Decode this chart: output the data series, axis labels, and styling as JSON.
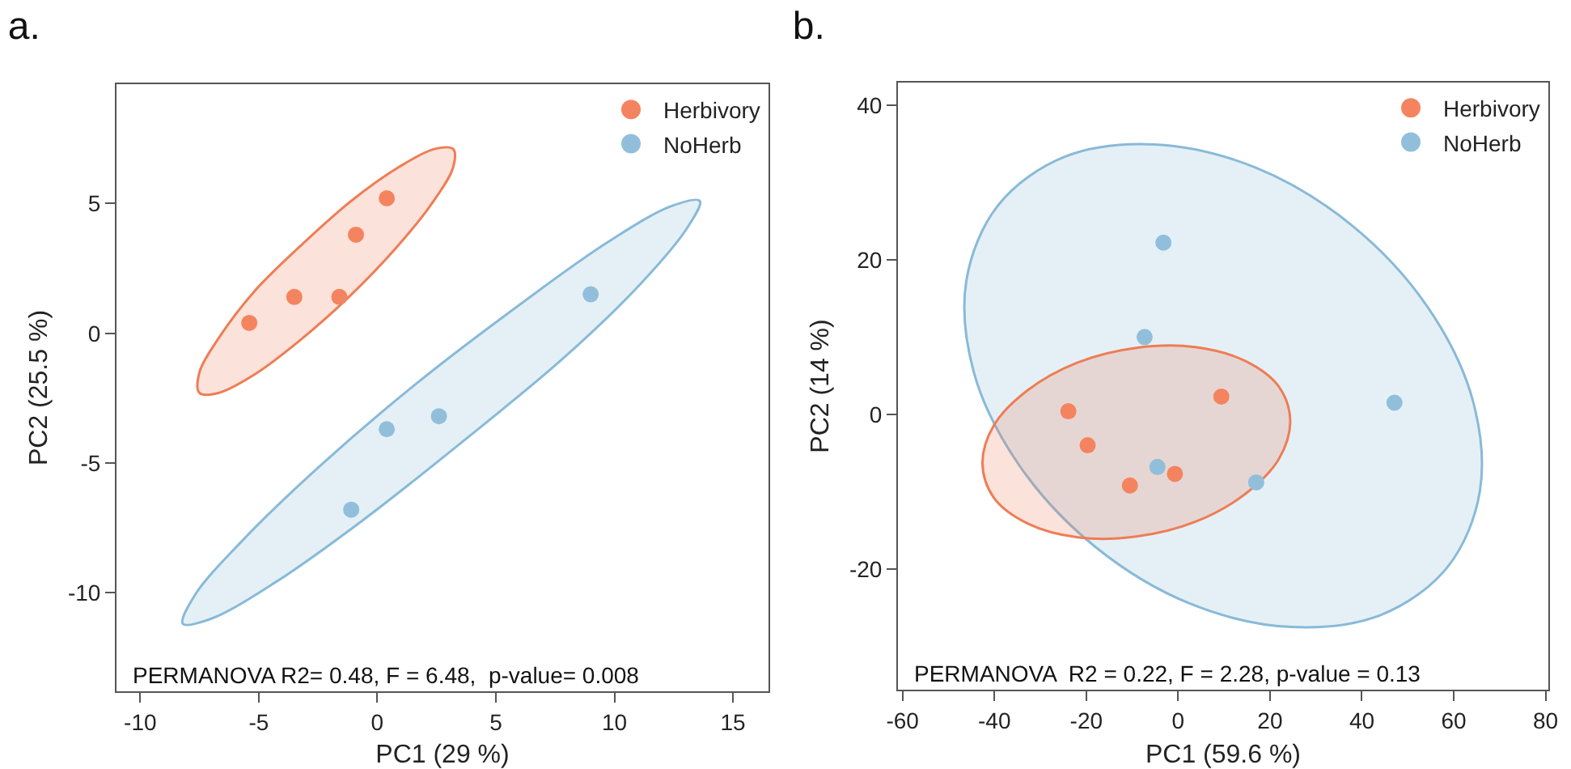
{
  "chart_data": [
    {
      "type": "scatter",
      "title": "a.",
      "xlabel": "PC1 (29 %)",
      "ylabel": "PC2 (25.5 %)",
      "xlim": [
        -11,
        16.5
      ],
      "ylim": [
        -13.8,
        9.6
      ],
      "xticks": [
        -10,
        -5,
        0,
        5,
        10,
        15
      ],
      "yticks": [
        -10,
        -5,
        0,
        5
      ],
      "grid": false,
      "legend": "top right",
      "annotations": [
        "PERMANOVA R2= 0.48, F = 6.48,  p-value= 0.008"
      ],
      "series": [
        {
          "type": "area",
          "color": "#ee7d55",
          "x": [
            3.2,
            3.2,
            2.3,
            0.8,
            -1.2,
            -3.3,
            -5.2,
            -6.7,
            -7.5,
            -7.5,
            -6.7,
            -5.2,
            -3.2,
            -1.1,
            0.9,
            2.4,
            3.2
          ],
          "values": [
            7.1,
            6.4,
            5.0,
            3.3,
            1.4,
            -0.3,
            -1.6,
            -2.3,
            -2.3,
            -1.5,
            -0.2,
            1.6,
            3.4,
            5.1,
            6.4,
            7.1,
            7.1
          ]
        },
        {
          "type": "area",
          "color": "#88bad8",
          "x": [
            13.6,
            13.1,
            11.1,
            7.8,
            3.7,
            -0.6,
            -4.3,
            -7.0,
            -8.2,
            -7.7,
            -5.7,
            -2.4,
            1.7,
            6.0,
            9.7,
            12.4,
            13.6
          ],
          "values": [
            5.1,
            4.1,
            1.9,
            -1.0,
            -4.1,
            -7.2,
            -9.6,
            -11.0,
            -11.2,
            -10.1,
            -8.0,
            -5.1,
            -1.9,
            1.1,
            3.5,
            4.9,
            5.1
          ]
        },
        {
          "name": "Herbivory",
          "color": "#f4845f",
          "marker": "circle",
          "x": [
            -5.4,
            -3.5,
            -1.6,
            -0.9,
            0.4
          ],
          "values": [
            0.4,
            1.4,
            1.4,
            3.8,
            5.2
          ]
        },
        {
          "name": "NoHerb",
          "color": "#91bfdb",
          "marker": "circle",
          "x": [
            0.4,
            2.6,
            -1.1,
            9.0
          ],
          "values": [
            -3.7,
            -3.2,
            -6.8,
            1.5
          ]
        }
      ]
    },
    {
      "type": "scatter",
      "title": "b.",
      "xlabel": "PC1 (59.6 %)",
      "ylabel": "PC2 (14 %)",
      "xlim": [
        -61,
        80.6
      ],
      "ylim": [
        -35.6,
        42.9
      ],
      "xticks": [
        -60,
        -40,
        -20,
        0,
        20,
        40,
        60,
        80
      ],
      "yticks": [
        -20,
        0,
        20,
        40
      ],
      "grid": false,
      "legend": "top right",
      "annotations": [
        "PERMANOVA  R2 = 0.22, F = 2.28, p-value = 0.13"
      ],
      "series": [
        {
          "type": "area",
          "color": "#88bad8",
          "x": [
            58.7,
            65.7,
            64.1,
            54.3,
            37.7,
            16.9,
            -5.1,
            -24.7,
            -39.1,
            -46.1,
            -44.5,
            -34.7,
            -18.1,
            2.7,
            24.7,
            44.3,
            58.7
          ],
          "values": [
            -19.7,
            -9.9,
            1.9,
            13.9,
            24.5,
            31.9,
            34.9,
            33.3,
            27.1,
            17.3,
            5.5,
            -6.5,
            -17.1,
            -24.5,
            -27.5,
            -25.9,
            -19.7
          ]
        },
        {
          "type": "area",
          "color": "#ee7d55",
          "x": [
            24.4,
            21.9,
            14.6,
            3.7,
            -9.1,
            -21.9,
            -32.8,
            -40.1,
            -42.6,
            -40.1,
            -32.8,
            -21.9,
            -9.1,
            3.7,
            14.6,
            21.9,
            24.4
          ],
          "values": [
            -0.9,
            3.6,
            6.9,
            8.7,
            8.6,
            6.7,
            3.1,
            -1.4,
            -6.3,
            -10.8,
            -14.1,
            -15.9,
            -15.8,
            -13.9,
            -10.3,
            -5.8,
            -0.9
          ]
        },
        {
          "name": "Herbivory",
          "color": "#f4845f",
          "marker": "circle",
          "x": [
            -23.9,
            -19.7,
            -10.5,
            -0.7,
            9.4
          ],
          "values": [
            0.4,
            -4.0,
            -9.2,
            -7.7,
            2.3
          ]
        },
        {
          "name": "NoHerb",
          "color": "#91bfdb",
          "marker": "circle",
          "x": [
            -3.2,
            -7.3,
            -4.5,
            17.0,
            47.1
          ],
          "values": [
            22.2,
            10.0,
            -6.8,
            -8.8,
            1.5
          ]
        }
      ]
    }
  ]
}
